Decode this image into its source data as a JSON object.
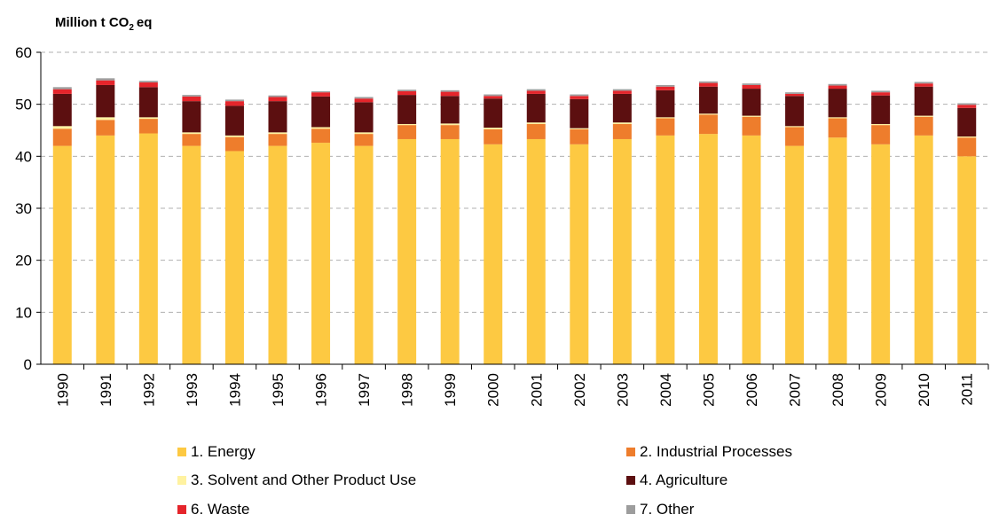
{
  "chart_data": {
    "type": "bar",
    "stacked": true,
    "ylabel": "Million t CO",
    "ylabel_subscript": "2",
    "ylabel_suffix": "eq",
    "ylim": [
      0,
      60
    ],
    "yticks": [
      "0",
      "10",
      "20",
      "30",
      "40",
      "50",
      "60"
    ],
    "grid": true,
    "legend_position": "bottom",
    "categories": [
      "1990",
      "1991",
      "1992",
      "1993",
      "1994",
      "1995",
      "1996",
      "1997",
      "1998",
      "1999",
      "2000",
      "2001",
      "2002",
      "2003",
      "2004",
      "2005",
      "2006",
      "2007",
      "2008",
      "2009",
      "2010",
      "2011"
    ],
    "series": [
      {
        "name": "1.  Energy",
        "color": "#FDC942",
        "values": [
          42.0,
          44.0,
          44.4,
          42.0,
          41.0,
          42.0,
          42.6,
          42.0,
          43.3,
          43.3,
          42.3,
          43.3,
          42.3,
          43.3,
          44.0,
          44.3,
          44.0,
          42.0,
          43.6,
          42.3,
          44.0,
          40.0
        ]
      },
      {
        "name": "2.  Industrial Processes",
        "color": "#EE7D2C",
        "values": [
          3.3,
          3.0,
          2.8,
          2.3,
          2.7,
          2.3,
          2.7,
          2.3,
          2.7,
          2.7,
          2.9,
          2.9,
          2.9,
          2.9,
          3.3,
          3.7,
          3.6,
          3.6,
          3.7,
          3.7,
          3.6,
          3.6
        ]
      },
      {
        "name": "3.  Solvent and Other Product Use",
        "color": "#FFF2A0",
        "values": [
          0.5,
          0.5,
          0.3,
          0.3,
          0.3,
          0.3,
          0.3,
          0.3,
          0.2,
          0.3,
          0.3,
          0.3,
          0.2,
          0.3,
          0.2,
          0.2,
          0.2,
          0.2,
          0.2,
          0.2,
          0.2,
          0.2
        ]
      },
      {
        "name": "4.  Agriculture",
        "color": "#5C0F10",
        "values": [
          6.2,
          6.2,
          5.8,
          6.0,
          5.7,
          6.0,
          5.9,
          5.8,
          5.6,
          5.3,
          5.6,
          5.5,
          5.6,
          5.5,
          5.2,
          5.2,
          5.2,
          5.8,
          5.5,
          5.5,
          5.6,
          5.5
        ]
      },
      {
        "name": "6. Waste",
        "color": "#E5252B",
        "values": [
          0.9,
          0.9,
          0.9,
          0.9,
          0.9,
          0.8,
          0.8,
          0.7,
          0.7,
          0.8,
          0.5,
          0.6,
          0.6,
          0.6,
          0.7,
          0.7,
          0.7,
          0.4,
          0.6,
          0.6,
          0.6,
          0.6
        ]
      },
      {
        "name": "7. Other",
        "color": "#9D9D9D",
        "values": [
          0.4,
          0.4,
          0.3,
          0.3,
          0.3,
          0.3,
          0.2,
          0.3,
          0.3,
          0.3,
          0.3,
          0.3,
          0.3,
          0.3,
          0.3,
          0.3,
          0.3,
          0.3,
          0.3,
          0.3,
          0.3,
          0.3
        ]
      }
    ]
  }
}
